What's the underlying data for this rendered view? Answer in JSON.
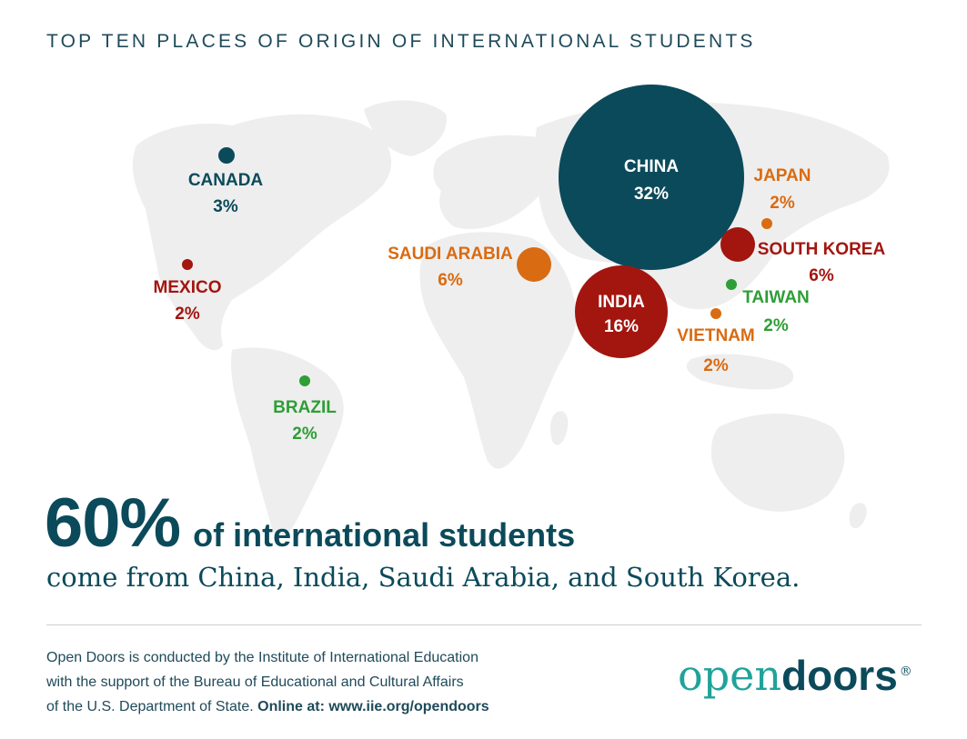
{
  "title": "TOP TEN PLACES OF ORIGIN OF INTERNATIONAL STUDENTS",
  "countries": [
    {
      "name": "CANADA",
      "pct": "3%",
      "color": "#0b4a5a"
    },
    {
      "name": "MEXICO",
      "pct": "2%",
      "color": "#a3150f"
    },
    {
      "name": "BRAZIL",
      "pct": "2%",
      "color": "#2e9e36"
    },
    {
      "name": "SAUDI ARABIA",
      "pct": "6%",
      "color": "#d96b12"
    },
    {
      "name": "CHINA",
      "pct": "32%",
      "color": "#0b4a5a"
    },
    {
      "name": "INDIA",
      "pct": "16%",
      "color": "#a3150f"
    },
    {
      "name": "JAPAN",
      "pct": "2%",
      "color": "#d96b12"
    },
    {
      "name": "SOUTH KOREA",
      "pct": "6%",
      "color": "#a3150f"
    },
    {
      "name": "TAIWAN",
      "pct": "2%",
      "color": "#2e9e36"
    },
    {
      "name": "VIETNAM",
      "pct": "2%",
      "color": "#d96b12"
    }
  ],
  "headline": {
    "pct": "60%",
    "text": "of international students"
  },
  "subline": "come from China, India, Saudi Arabia, and South Korea.",
  "footer": {
    "line1": "Open Doors is conducted by the Institute of International Education",
    "line2": "with the support of the Bureau of Educational and Cultural Affairs",
    "line3_plain": "of the U.S. Department of State.",
    "line3_bold": "Online at: www.iie.org/opendoors"
  },
  "logo": {
    "open": "open",
    "doors": "doors",
    "reg": "®"
  },
  "colors": {
    "teal": "#0b4a5a",
    "red": "#a3150f",
    "orange": "#d96b12",
    "green": "#2e9e36",
    "land": "#eeeeee"
  }
}
